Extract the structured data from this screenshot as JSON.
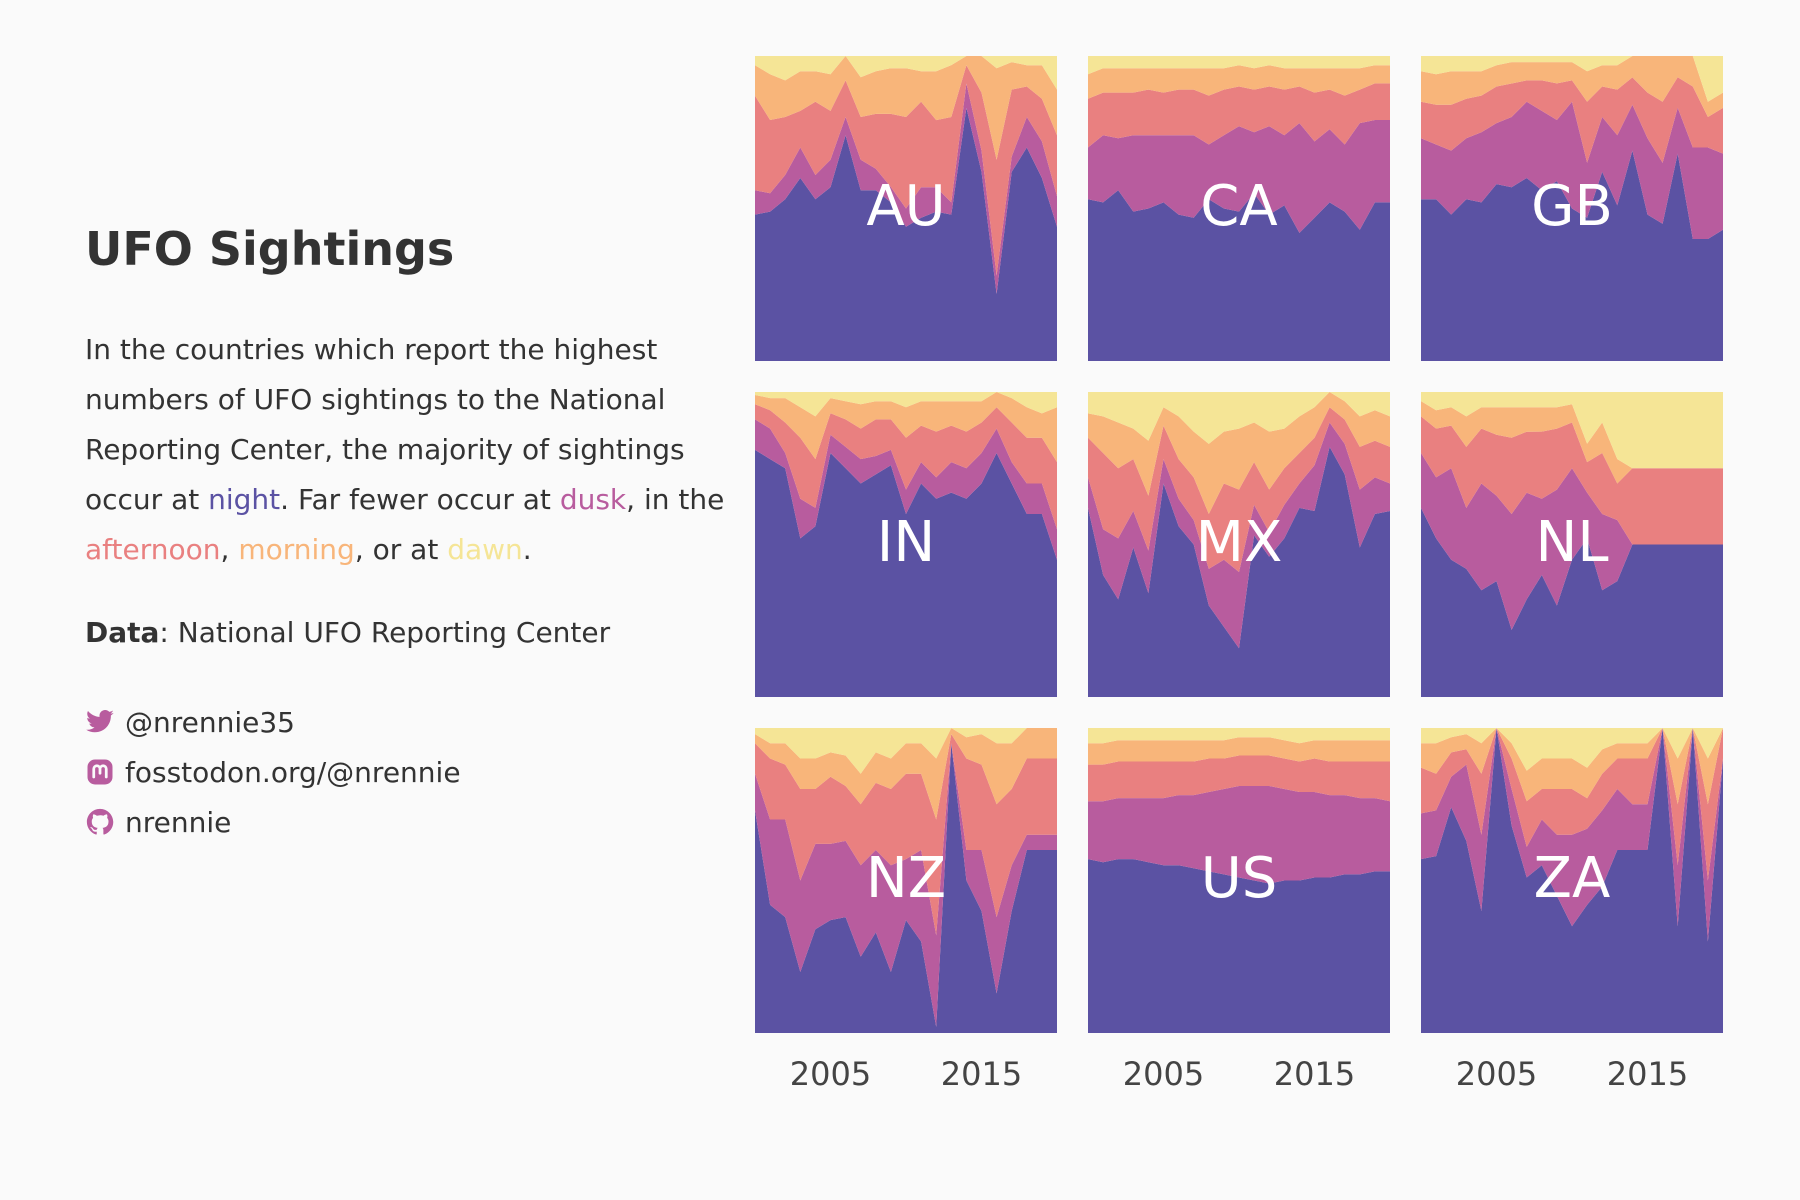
{
  "title": "UFO Sightings",
  "description": {
    "intro": "In the countries which report the highest numbers of UFO sightings to the National Reporting Center, the majority of sightings occur at ",
    "night": "night",
    "mid1": ". Far fewer occur at ",
    "dusk": "dusk",
    "mid2": ", in the ",
    "afternoon": "afternoon",
    "sep1": ", ",
    "morning": "morning",
    "sep2": ", or at ",
    "dawn": "dawn",
    "end": "."
  },
  "source": {
    "label": "Data",
    "text": ": National UFO Reporting Center"
  },
  "social": {
    "twitter": "@nrennie35",
    "mastodon": "fosstodon.org/@nrennie",
    "github": "nrennie"
  },
  "icons": {
    "twitter": "twitter-bird-icon",
    "mastodon": "mastodon-icon",
    "github": "github-icon"
  },
  "colors": {
    "background": "#fafafa",
    "text": "#333333",
    "icon": "#b85c9e",
    "night": "#5b52a3",
    "dusk": "#b85c9e",
    "afternoon": "#e98080",
    "morning": "#f8b57a",
    "dawn": "#f5e596"
  },
  "chart_data": {
    "type": "area",
    "subtype": "stacked proportional area, small multiples",
    "series_order": [
      "night",
      "dusk",
      "afternoon",
      "morning",
      "dawn"
    ],
    "x": [
      2000,
      2001,
      2002,
      2003,
      2004,
      2005,
      2006,
      2007,
      2008,
      2009,
      2010,
      2011,
      2012,
      2013,
      2014,
      2015,
      2016,
      2017,
      2018,
      2019,
      2020
    ],
    "xlim": [
      2000,
      2020
    ],
    "x_ticks": [
      2005,
      2015
    ],
    "ylim": [
      0,
      1
    ],
    "panels": [
      {
        "label": "AU",
        "night": [
          0.48,
          0.49,
          0.53,
          0.6,
          0.53,
          0.57,
          0.74,
          0.56,
          0.56,
          0.52,
          0.44,
          0.47,
          0.49,
          0.48,
          0.83,
          0.62,
          0.22,
          0.62,
          0.7,
          0.6,
          0.44
        ],
        "dusk": [
          0.08,
          0.06,
          0.08,
          0.1,
          0.08,
          0.09,
          0.06,
          0.1,
          0.07,
          0.05,
          0.06,
          0.1,
          0.08,
          0.04,
          0.08,
          0.07,
          0.06,
          0.05,
          0.1,
          0.12,
          0.1
        ],
        "afternoon": [
          0.31,
          0.24,
          0.19,
          0.12,
          0.24,
          0.16,
          0.12,
          0.14,
          0.18,
          0.24,
          0.3,
          0.28,
          0.22,
          0.28,
          0.06,
          0.19,
          0.38,
          0.22,
          0.1,
          0.14,
          0.2
        ],
        "morning": [
          0.1,
          0.15,
          0.12,
          0.13,
          0.1,
          0.12,
          0.08,
          0.13,
          0.14,
          0.15,
          0.16,
          0.1,
          0.16,
          0.17,
          0.03,
          0.12,
          0.3,
          0.09,
          0.07,
          0.11,
          0.15
        ],
        "dawn": [
          0.03,
          0.06,
          0.08,
          0.05,
          0.05,
          0.06,
          0.0,
          0.07,
          0.05,
          0.04,
          0.04,
          0.05,
          0.05,
          0.03,
          0.0,
          0.0,
          0.04,
          0.02,
          0.03,
          0.03,
          0.11
        ]
      },
      {
        "label": "CA",
        "night": [
          0.53,
          0.52,
          0.56,
          0.49,
          0.5,
          0.52,
          0.48,
          0.47,
          0.53,
          0.5,
          0.49,
          0.55,
          0.48,
          0.51,
          0.42,
          0.47,
          0.52,
          0.49,
          0.43,
          0.52,
          0.52
        ],
        "dusk": [
          0.17,
          0.22,
          0.17,
          0.25,
          0.24,
          0.22,
          0.26,
          0.27,
          0.18,
          0.24,
          0.28,
          0.2,
          0.29,
          0.23,
          0.36,
          0.25,
          0.24,
          0.22,
          0.35,
          0.27,
          0.27
        ],
        "afternoon": [
          0.16,
          0.14,
          0.15,
          0.14,
          0.15,
          0.14,
          0.15,
          0.15,
          0.16,
          0.15,
          0.13,
          0.14,
          0.13,
          0.15,
          0.12,
          0.16,
          0.13,
          0.16,
          0.11,
          0.12,
          0.12
        ],
        "morning": [
          0.08,
          0.08,
          0.08,
          0.08,
          0.07,
          0.08,
          0.07,
          0.07,
          0.09,
          0.07,
          0.07,
          0.07,
          0.07,
          0.07,
          0.06,
          0.08,
          0.07,
          0.09,
          0.07,
          0.06,
          0.06
        ],
        "dawn": [
          0.06,
          0.04,
          0.04,
          0.04,
          0.04,
          0.04,
          0.04,
          0.04,
          0.04,
          0.04,
          0.03,
          0.04,
          0.03,
          0.04,
          0.04,
          0.04,
          0.04,
          0.04,
          0.04,
          0.03,
          0.03
        ]
      },
      {
        "label": "GB",
        "night": [
          0.53,
          0.53,
          0.48,
          0.53,
          0.52,
          0.58,
          0.57,
          0.6,
          0.56,
          0.59,
          0.5,
          0.47,
          0.62,
          0.51,
          0.69,
          0.48,
          0.45,
          0.68,
          0.4,
          0.4,
          0.43
        ],
        "dusk": [
          0.2,
          0.18,
          0.21,
          0.2,
          0.23,
          0.2,
          0.23,
          0.25,
          0.26,
          0.2,
          0.35,
          0.18,
          0.18,
          0.23,
          0.15,
          0.25,
          0.2,
          0.15,
          0.3,
          0.3,
          0.25
        ],
        "afternoon": [
          0.12,
          0.13,
          0.15,
          0.13,
          0.12,
          0.12,
          0.11,
          0.07,
          0.1,
          0.12,
          0.07,
          0.2,
          0.1,
          0.15,
          0.09,
          0.15,
          0.2,
          0.1,
          0.2,
          0.1,
          0.15
        ],
        "morning": [
          0.1,
          0.1,
          0.11,
          0.09,
          0.08,
          0.07,
          0.07,
          0.06,
          0.06,
          0.07,
          0.06,
          0.1,
          0.07,
          0.08,
          0.07,
          0.12,
          0.15,
          0.07,
          0.1,
          0.05,
          0.05
        ],
        "dawn": [
          0.05,
          0.06,
          0.05,
          0.05,
          0.05,
          0.03,
          0.02,
          0.02,
          0.02,
          0.02,
          0.02,
          0.05,
          0.03,
          0.03,
          0.0,
          0.0,
          0.0,
          0.0,
          0.0,
          0.15,
          0.12
        ]
      },
      {
        "label": "IN",
        "night": [
          0.81,
          0.78,
          0.75,
          0.52,
          0.56,
          0.8,
          0.75,
          0.7,
          0.73,
          0.76,
          0.6,
          0.7,
          0.65,
          0.67,
          0.65,
          0.7,
          0.8,
          0.7,
          0.6,
          0.6,
          0.45
        ],
        "dusk": [
          0.1,
          0.1,
          0.05,
          0.13,
          0.06,
          0.06,
          0.07,
          0.08,
          0.06,
          0.05,
          0.08,
          0.07,
          0.07,
          0.1,
          0.1,
          0.1,
          0.08,
          0.07,
          0.1,
          0.1,
          0.1
        ],
        "afternoon": [
          0.05,
          0.06,
          0.1,
          0.2,
          0.16,
          0.07,
          0.09,
          0.1,
          0.12,
          0.1,
          0.17,
          0.12,
          0.15,
          0.12,
          0.12,
          0.1,
          0.07,
          0.13,
          0.15,
          0.15,
          0.22
        ],
        "morning": [
          0.03,
          0.04,
          0.08,
          0.1,
          0.14,
          0.05,
          0.06,
          0.08,
          0.06,
          0.06,
          0.1,
          0.08,
          0.1,
          0.08,
          0.1,
          0.07,
          0.05,
          0.08,
          0.1,
          0.08,
          0.18
        ],
        "dawn": [
          0.01,
          0.02,
          0.02,
          0.05,
          0.08,
          0.02,
          0.03,
          0.04,
          0.03,
          0.03,
          0.05,
          0.03,
          0.03,
          0.03,
          0.03,
          0.03,
          0.0,
          0.02,
          0.05,
          0.07,
          0.05
        ]
      },
      {
        "label": "MX",
        "night": [
          0.62,
          0.4,
          0.32,
          0.49,
          0.34,
          0.7,
          0.56,
          0.5,
          0.3,
          0.23,
          0.16,
          0.53,
          0.46,
          0.52,
          0.62,
          0.61,
          0.82,
          0.73,
          0.49,
          0.6,
          0.61
        ],
        "dusk": [
          0.1,
          0.15,
          0.2,
          0.12,
          0.14,
          0.08,
          0.09,
          0.08,
          0.12,
          0.22,
          0.25,
          0.1,
          0.08,
          0.11,
          0.08,
          0.15,
          0.08,
          0.1,
          0.19,
          0.12,
          0.09
        ],
        "afternoon": [
          0.13,
          0.25,
          0.23,
          0.17,
          0.18,
          0.11,
          0.13,
          0.14,
          0.18,
          0.25,
          0.27,
          0.14,
          0.14,
          0.12,
          0.1,
          0.09,
          0.05,
          0.08,
          0.14,
          0.12,
          0.12
        ],
        "morning": [
          0.08,
          0.12,
          0.15,
          0.1,
          0.18,
          0.06,
          0.14,
          0.15,
          0.23,
          0.17,
          0.2,
          0.13,
          0.19,
          0.13,
          0.12,
          0.1,
          0.05,
          0.06,
          0.1,
          0.1,
          0.1
        ],
        "dawn": [
          0.07,
          0.08,
          0.1,
          0.12,
          0.16,
          0.05,
          0.08,
          0.13,
          0.17,
          0.13,
          0.12,
          0.1,
          0.13,
          0.12,
          0.08,
          0.05,
          0.0,
          0.03,
          0.08,
          0.06,
          0.08
        ]
      },
      {
        "label": "NL",
        "night": [
          0.62,
          0.52,
          0.45,
          0.42,
          0.35,
          0.38,
          0.22,
          0.32,
          0.4,
          0.3,
          0.45,
          0.52,
          0.35,
          0.38,
          0.5,
          0.5,
          0.5,
          0.5,
          0.5,
          0.5,
          0.5
        ],
        "dusk": [
          0.18,
          0.2,
          0.3,
          0.2,
          0.35,
          0.28,
          0.38,
          0.35,
          0.25,
          0.38,
          0.3,
          0.15,
          0.25,
          0.2,
          0.0,
          0.0,
          0.0,
          0.0,
          0.0,
          0.0,
          0.0
        ],
        "afternoon": [
          0.12,
          0.16,
          0.14,
          0.2,
          0.18,
          0.2,
          0.25,
          0.2,
          0.22,
          0.2,
          0.15,
          0.1,
          0.2,
          0.12,
          0.25,
          0.25,
          0.25,
          0.25,
          0.25,
          0.25,
          0.25
        ],
        "morning": [
          0.05,
          0.06,
          0.06,
          0.1,
          0.07,
          0.09,
          0.1,
          0.08,
          0.08,
          0.07,
          0.06,
          0.06,
          0.1,
          0.08,
          0.0,
          0.0,
          0.0,
          0.0,
          0.0,
          0.0,
          0.0
        ],
        "dawn": [
          0.03,
          0.06,
          0.05,
          0.08,
          0.05,
          0.05,
          0.05,
          0.05,
          0.05,
          0.05,
          0.04,
          0.17,
          0.1,
          0.22,
          0.25,
          0.25,
          0.25,
          0.25,
          0.25,
          0.25,
          0.25
        ]
      },
      {
        "label": "NZ",
        "night": [
          0.73,
          0.42,
          0.38,
          0.2,
          0.34,
          0.37,
          0.38,
          0.25,
          0.33,
          0.2,
          0.37,
          0.3,
          0.02,
          0.95,
          0.5,
          0.4,
          0.13,
          0.4,
          0.6,
          0.6,
          0.6
        ],
        "dusk": [
          0.12,
          0.28,
          0.32,
          0.3,
          0.28,
          0.25,
          0.25,
          0.3,
          0.27,
          0.35,
          0.2,
          0.3,
          0.3,
          0.0,
          0.1,
          0.2,
          0.25,
          0.15,
          0.05,
          0.05,
          0.05
        ],
        "afternoon": [
          0.1,
          0.2,
          0.18,
          0.3,
          0.18,
          0.22,
          0.18,
          0.2,
          0.22,
          0.25,
          0.28,
          0.25,
          0.38,
          0.03,
          0.3,
          0.28,
          0.37,
          0.25,
          0.25,
          0.25,
          0.25
        ],
        "morning": [
          0.03,
          0.05,
          0.07,
          0.1,
          0.1,
          0.08,
          0.1,
          0.1,
          0.1,
          0.1,
          0.1,
          0.1,
          0.2,
          0.02,
          0.07,
          0.1,
          0.2,
          0.15,
          0.1,
          0.1,
          0.1
        ],
        "dawn": [
          0.02,
          0.05,
          0.05,
          0.1,
          0.1,
          0.08,
          0.09,
          0.15,
          0.08,
          0.1,
          0.05,
          0.05,
          0.1,
          0.0,
          0.03,
          0.02,
          0.05,
          0.05,
          0.0,
          0.0,
          0.0
        ]
      },
      {
        "label": "US",
        "night": [
          0.57,
          0.56,
          0.57,
          0.57,
          0.56,
          0.55,
          0.55,
          0.54,
          0.53,
          0.52,
          0.51,
          0.5,
          0.49,
          0.5,
          0.5,
          0.51,
          0.51,
          0.52,
          0.52,
          0.53,
          0.53
        ],
        "dusk": [
          0.19,
          0.2,
          0.2,
          0.2,
          0.21,
          0.22,
          0.23,
          0.24,
          0.26,
          0.28,
          0.3,
          0.31,
          0.32,
          0.3,
          0.29,
          0.28,
          0.27,
          0.26,
          0.25,
          0.24,
          0.23
        ],
        "afternoon": [
          0.12,
          0.12,
          0.12,
          0.12,
          0.12,
          0.12,
          0.11,
          0.11,
          0.11,
          0.1,
          0.1,
          0.1,
          0.1,
          0.1,
          0.1,
          0.11,
          0.11,
          0.11,
          0.12,
          0.12,
          0.13
        ],
        "morning": [
          0.07,
          0.07,
          0.07,
          0.07,
          0.07,
          0.07,
          0.07,
          0.07,
          0.06,
          0.06,
          0.06,
          0.06,
          0.06,
          0.06,
          0.06,
          0.06,
          0.07,
          0.07,
          0.07,
          0.07,
          0.07
        ],
        "dawn": [
          0.05,
          0.05,
          0.04,
          0.04,
          0.04,
          0.04,
          0.04,
          0.04,
          0.04,
          0.04,
          0.03,
          0.03,
          0.03,
          0.04,
          0.05,
          0.04,
          0.04,
          0.04,
          0.04,
          0.04,
          0.04
        ]
      },
      {
        "label": "ZA",
        "night": [
          0.57,
          0.58,
          0.74,
          0.63,
          0.4,
          1.0,
          0.68,
          0.51,
          0.55,
          0.45,
          0.35,
          0.42,
          0.48,
          0.6,
          0.6,
          0.6,
          1.0,
          0.35,
          1.0,
          0.3,
          0.9
        ],
        "dusk": [
          0.15,
          0.15,
          0.1,
          0.25,
          0.25,
          0.0,
          0.12,
          0.1,
          0.15,
          0.2,
          0.3,
          0.25,
          0.25,
          0.2,
          0.15,
          0.15,
          0.0,
          0.2,
          0.0,
          0.2,
          0.0
        ],
        "afternoon": [
          0.15,
          0.12,
          0.08,
          0.05,
          0.2,
          0.0,
          0.1,
          0.15,
          0.1,
          0.15,
          0.15,
          0.1,
          0.12,
          0.1,
          0.15,
          0.15,
          0.0,
          0.2,
          0.0,
          0.25,
          0.1
        ],
        "morning": [
          0.08,
          0.1,
          0.05,
          0.05,
          0.1,
          0.0,
          0.05,
          0.1,
          0.1,
          0.1,
          0.1,
          0.1,
          0.08,
          0.05,
          0.05,
          0.05,
          0.0,
          0.15,
          0.0,
          0.15,
          0.0
        ],
        "dawn": [
          0.05,
          0.05,
          0.03,
          0.02,
          0.05,
          0.0,
          0.05,
          0.14,
          0.1,
          0.1,
          0.1,
          0.13,
          0.07,
          0.05,
          0.05,
          0.05,
          0.0,
          0.1,
          0.0,
          0.1,
          0.0
        ]
      }
    ]
  }
}
